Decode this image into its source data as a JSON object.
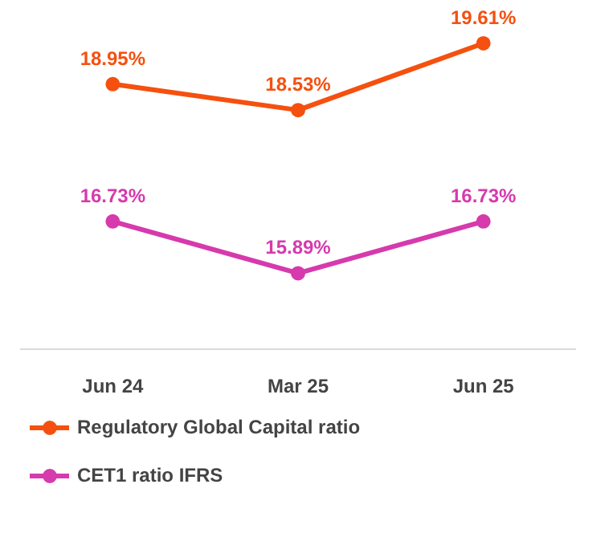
{
  "chart_data": {
    "type": "line",
    "categories": [
      "Jun 24",
      "Mar 25",
      "Jun 25"
    ],
    "series": [
      {
        "name": "Regulatory Global Capital ratio",
        "color": "#f5500f",
        "values": [
          18.95,
          18.53,
          19.61
        ],
        "value_labels": [
          "18.95%",
          "18.53%",
          "19.61%"
        ]
      },
      {
        "name": "CET1 ratio IFRS",
        "color": "#d63aad",
        "values": [
          16.73,
          15.89,
          16.73
        ],
        "value_labels": [
          "16.73%",
          "15.89%",
          "16.73%"
        ]
      }
    ],
    "marker": "circle",
    "legend": "bottom",
    "grid": false
  }
}
